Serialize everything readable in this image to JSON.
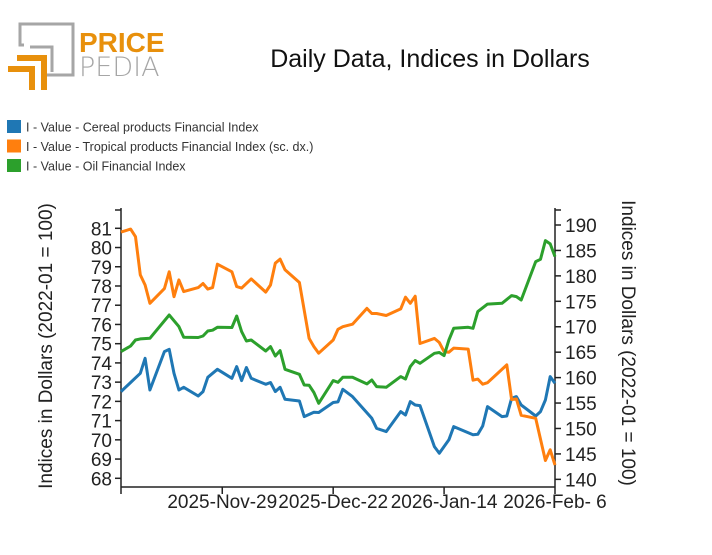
{
  "logo": {
    "text_top": "PRICE",
    "text_bottom": "PEDIA",
    "orange": "#e8900c",
    "gray": "#a6a6a6"
  },
  "chart_data": {
    "type": "line",
    "title": "Daily Data, Indices in Dollars",
    "ylabel": "Indices in Dollars (2022-01 = 100)",
    "ylabel_right": "Indices in Dollars (2022-01 = 100)",
    "xlim": [
      "2025-11-08",
      "2026-02-06"
    ],
    "ylim": [
      68,
      81.5
    ],
    "ylim_right": [
      140,
      191
    ],
    "x_ticks": [
      {
        "date": "2025-11-29",
        "label": "2025-Nov-29"
      },
      {
        "date": "2025-12-22",
        "label": "2025-Dec-22"
      },
      {
        "date": "2026-01-14",
        "label": "2026-Jan-14"
      },
      {
        "date": "2026-02-06",
        "label": "2026-Feb- 6"
      }
    ],
    "y_ticks": [
      68,
      69,
      70,
      71,
      72,
      73,
      74,
      75,
      76,
      77,
      78,
      79,
      80,
      81
    ],
    "y_ticks_right": [
      140,
      145,
      150,
      155,
      160,
      165,
      170,
      175,
      180,
      185,
      190
    ],
    "grid": false,
    "legend_position": "top-left",
    "series": [
      {
        "name": "I - Value - Cereal products Financial Index",
        "axis": "left",
        "color": "#1f77b4",
        "x": [
          "2025-11-08",
          "2025-11-10",
          "2025-11-12",
          "2025-11-13",
          "2025-11-14",
          "2025-11-17",
          "2025-11-18",
          "2025-11-19",
          "2025-11-20",
          "2025-11-21",
          "2025-11-24",
          "2025-11-25",
          "2025-11-26",
          "2025-11-28",
          "2025-12-01",
          "2025-12-02",
          "2025-12-03",
          "2025-12-04",
          "2025-12-05",
          "2025-12-08",
          "2025-12-09",
          "2025-12-10",
          "2025-12-11",
          "2025-12-12",
          "2025-12-15",
          "2025-12-16",
          "2025-12-18",
          "2025-12-19",
          "2025-12-22",
          "2025-12-23",
          "2025-12-24",
          "2025-12-26",
          "2025-12-30",
          "2025-12-31",
          "2026-01-02",
          "2026-01-05",
          "2026-01-06",
          "2026-01-07",
          "2026-01-08",
          "2026-01-09",
          "2026-01-12",
          "2026-01-13",
          "2026-01-15",
          "2026-01-16",
          "2026-01-20",
          "2026-01-21",
          "2026-01-22",
          "2026-01-23",
          "2026-01-26",
          "2026-01-27",
          "2026-01-28",
          "2026-01-29",
          "2026-01-30",
          "2026-02-02",
          "2026-02-03",
          "2026-02-04",
          "2026-02-05",
          "2026-02-06"
        ],
        "values": [
          72.51,
          72.98,
          73.46,
          74.24,
          72.59,
          74.59,
          74.71,
          73.46,
          72.59,
          72.73,
          72.28,
          72.51,
          73.25,
          73.67,
          73.2,
          73.81,
          73.08,
          73.76,
          73.2,
          72.89,
          72.98,
          72.51,
          72.73,
          72.11,
          72.02,
          71.21,
          71.43,
          71.42,
          71.94,
          71.97,
          72.63,
          72.25,
          71.12,
          70.6,
          70.43,
          71.47,
          71.29,
          71.99,
          71.81,
          71.78,
          69.65,
          69.3,
          70.0,
          70.69,
          70.26,
          70.29,
          70.72,
          71.73,
          71.21,
          71.24,
          72.16,
          72.25,
          71.81,
          71.24,
          71.47,
          72.07,
          73.29,
          72.94
        ]
      },
      {
        "name": "I - Value - Tropical products Financial Index (sc. dx.)",
        "axis": "right",
        "color": "#ff7f0e",
        "x": [
          "2025-11-08",
          "2025-11-10",
          "2025-11-11",
          "2025-11-12",
          "2025-11-13",
          "2025-11-14",
          "2025-11-17",
          "2025-11-18",
          "2025-11-19",
          "2025-11-20",
          "2025-11-21",
          "2025-11-24",
          "2025-11-25",
          "2025-11-26",
          "2025-11-27",
          "2025-11-28",
          "2025-12-01",
          "2025-12-02",
          "2025-12-03",
          "2025-12-05",
          "2025-12-08",
          "2025-12-09",
          "2025-12-10",
          "2025-12-11",
          "2025-12-12",
          "2025-12-15",
          "2025-12-17",
          "2025-12-18",
          "2025-12-19",
          "2025-12-22",
          "2025-12-23",
          "2025-12-24",
          "2025-12-26",
          "2025-12-29",
          "2025-12-30",
          "2025-12-31",
          "2026-01-02",
          "2026-01-05",
          "2026-01-06",
          "2026-01-07",
          "2026-01-08",
          "2026-01-09",
          "2026-01-12",
          "2026-01-13",
          "2026-01-14",
          "2026-01-15",
          "2026-01-16",
          "2026-01-19",
          "2026-01-20",
          "2026-01-21",
          "2026-01-22",
          "2026-01-23",
          "2026-01-27",
          "2026-01-28",
          "2026-01-29",
          "2026-01-30",
          "2026-02-02",
          "2026-02-04",
          "2026-02-05",
          "2026-02-06"
        ],
        "values": [
          188.6,
          189.2,
          187.7,
          180.2,
          178.2,
          174.6,
          177.5,
          180.8,
          175.9,
          179.2,
          176.9,
          177.7,
          178.5,
          177.4,
          177.7,
          182.3,
          180.8,
          177.9,
          177.6,
          179.4,
          176.8,
          178.2,
          182.5,
          183.3,
          181.2,
          178.7,
          167.7,
          166.1,
          164.8,
          167.4,
          169.5,
          170.0,
          170.5,
          173.6,
          172.6,
          172.6,
          172.2,
          173.5,
          175.8,
          174.6,
          176.0,
          166.7,
          167.7,
          166.9,
          165.1,
          165.0,
          165.8,
          165.6,
          159.5,
          159.7,
          158.7,
          159.0,
          162.5,
          155.7,
          155.8,
          152.6,
          152.0,
          143.7,
          145.8,
          142.8
        ]
      },
      {
        "name": "I - Value - Oil Financial Index",
        "axis": "left",
        "color": "#2ca02c",
        "x": [
          "2025-11-08",
          "2025-11-10",
          "2025-11-11",
          "2025-11-12",
          "2025-11-14",
          "2025-11-18",
          "2025-11-20",
          "2025-11-21",
          "2025-11-24",
          "2025-11-25",
          "2025-11-26",
          "2025-11-27",
          "2025-11-28",
          "2025-12-01",
          "2025-12-02",
          "2025-12-03",
          "2025-12-04",
          "2025-12-05",
          "2025-12-08",
          "2025-12-09",
          "2025-12-10",
          "2025-12-11",
          "2025-12-12",
          "2025-12-15",
          "2025-12-16",
          "2025-12-17",
          "2025-12-18",
          "2025-12-19",
          "2025-12-22",
          "2025-12-23",
          "2025-12-24",
          "2025-12-26",
          "2025-12-29",
          "2025-12-30",
          "2025-12-31",
          "2026-01-02",
          "2026-01-05",
          "2026-01-06",
          "2026-01-07",
          "2026-01-08",
          "2026-01-09",
          "2026-01-12",
          "2026-01-13",
          "2026-01-14",
          "2026-01-15",
          "2026-01-16",
          "2026-01-19",
          "2026-01-20",
          "2026-01-21",
          "2026-01-23",
          "2026-01-26",
          "2026-01-28",
          "2026-01-29",
          "2026-01-30",
          "2026-02-02",
          "2026-02-03",
          "2026-02-04",
          "2026-02-05",
          "2026-02-06"
        ],
        "values": [
          74.59,
          74.88,
          75.19,
          75.25,
          75.28,
          76.49,
          75.89,
          75.33,
          75.32,
          75.4,
          75.66,
          75.7,
          75.85,
          75.84,
          76.44,
          75.63,
          75.14,
          75.19,
          74.62,
          74.85,
          74.36,
          74.64,
          73.67,
          73.41,
          72.85,
          72.84,
          72.46,
          71.9,
          73.08,
          72.99,
          73.25,
          73.25,
          72.91,
          73.11,
          72.77,
          72.73,
          73.29,
          73.16,
          73.81,
          74.12,
          73.98,
          74.5,
          74.54,
          74.38,
          75.19,
          75.8,
          75.85,
          75.8,
          76.67,
          77.06,
          77.1,
          77.5,
          77.45,
          77.27,
          79.27,
          79.39,
          80.36,
          80.19,
          79.53
        ]
      }
    ]
  }
}
